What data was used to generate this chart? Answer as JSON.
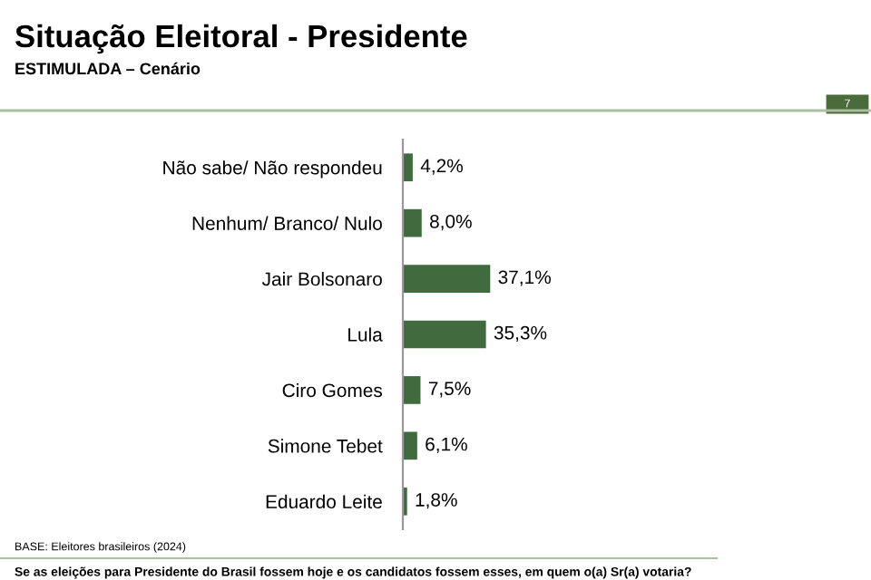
{
  "chart_data": {
    "type": "bar",
    "orientation": "horizontal",
    "title": "Situação Eleitoral - Presidente",
    "subtitle": "ESTIMULADA – Cenário",
    "categories": [
      "Não sabe/ Não respondeu",
      "Nenhum/ Branco/ Nulo",
      "Jair Bolsonaro",
      "Lula",
      "Ciro Gomes",
      "Simone Tebet",
      "Eduardo Leite"
    ],
    "values": [
      4.2,
      8.0,
      37.1,
      35.3,
      7.5,
      6.1,
      1.8
    ],
    "value_labels": [
      "4,2%",
      "8,0%",
      "37,1%",
      "35,3%",
      "7,5%",
      "6,1%",
      "1,8%"
    ],
    "color": "#3f6b3f",
    "grid": false,
    "legend": false,
    "annotations": [
      "7",
      "BASE: Eleitores brasileiros (2024)",
      "Se as eleições para Presidente do Brasil fossem hoje e os candidatos fossem esses, em quem o(a) Sr(a) votaria?"
    ]
  }
}
